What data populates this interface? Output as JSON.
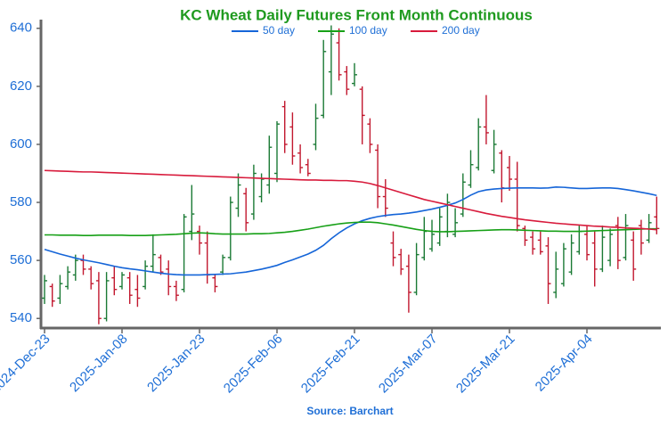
{
  "chart_data": {
    "type": "ohlc",
    "title": "KC Wheat Daily Futures Front Month Continuous",
    "source": "Source: Barchart",
    "categories": [
      "2024-Dec-23",
      null,
      null,
      null,
      null,
      null,
      null,
      null,
      null,
      null,
      "2025-Jan-08",
      null,
      null,
      null,
      null,
      null,
      null,
      null,
      null,
      null,
      "2025-Jan-23",
      null,
      null,
      null,
      null,
      null,
      null,
      null,
      null,
      null,
      "2025-Feb-06",
      null,
      null,
      null,
      null,
      null,
      null,
      null,
      null,
      null,
      "2025-Feb-21",
      null,
      null,
      null,
      null,
      null,
      null,
      null,
      null,
      null,
      "2025-Mar-07",
      null,
      null,
      null,
      null,
      null,
      null,
      null,
      null,
      null,
      "2025-Mar-21",
      null,
      null,
      null,
      null,
      null,
      null,
      null,
      null,
      null,
      "2025-Apr-04",
      null,
      null,
      null,
      null,
      null,
      null,
      null,
      null,
      null
    ],
    "ohlc": {
      "up_color": "#1b7a35",
      "down_color": "#c2182f",
      "open": [
        547,
        551,
        547,
        551,
        555,
        560,
        557,
        553,
        540,
        554,
        551,
        554,
        550,
        551,
        558,
        561,
        557,
        551,
        550,
        570,
        570,
        566,
        554,
        556,
        561,
        578,
        583,
        576,
        582,
        586,
        590,
        613,
        606,
        597,
        593,
        600,
        610,
        625,
        635,
        625,
        621,
        619,
        607,
        598,
        582,
        566,
        562,
        558,
        549,
        561,
        564,
        566,
        570,
        569,
        576,
        586,
        592,
        606,
        591,
        597,
        592,
        588,
        571,
        568,
        567,
        565,
        549,
        552,
        556,
        563,
        569,
        566,
        557,
        560,
        572,
        561,
        567,
        572,
        567,
        575
      ],
      "high": [
        555,
        552,
        555,
        558,
        562,
        562,
        558,
        556,
        556,
        558,
        556,
        556,
        555,
        560,
        569,
        562,
        560,
        553,
        576,
        586,
        572,
        570,
        555,
        562,
        582,
        590,
        585,
        593,
        590,
        603,
        608,
        615,
        611,
        600,
        595,
        614,
        636,
        641,
        640,
        627,
        628,
        620,
        609,
        600,
        588,
        570,
        564,
        562,
        566,
        575,
        574,
        578,
        583,
        578,
        590,
        598,
        609,
        617,
        605,
        598,
        596,
        594,
        572,
        570,
        570,
        568,
        563,
        566,
        569,
        572,
        572,
        570,
        572,
        571,
        575,
        576,
        570,
        574,
        576,
        582
      ],
      "low": [
        545,
        544,
        545,
        550,
        553,
        555,
        550,
        538,
        539,
        548,
        550,
        545,
        544,
        550,
        556,
        555,
        548,
        546,
        549,
        567,
        562,
        552,
        549,
        555,
        560,
        575,
        570,
        574,
        580,
        583,
        587,
        597,
        593,
        590,
        589,
        598,
        609,
        617,
        622,
        617,
        620,
        600,
        597,
        578,
        575,
        558,
        555,
        542,
        548,
        560,
        563,
        565,
        568,
        568,
        575,
        585,
        591,
        600,
        590,
        580,
        584,
        570,
        565,
        562,
        562,
        545,
        547,
        551,
        555,
        562,
        560,
        551,
        556,
        558,
        557,
        560,
        553,
        562,
        566,
        569
      ],
      "close": [
        553,
        546,
        552,
        556,
        560,
        557,
        552,
        540,
        553,
        550,
        555,
        548,
        547,
        558,
        562,
        556,
        551,
        548,
        575,
        576,
        566,
        555,
        551,
        561,
        580,
        586,
        573,
        590,
        588,
        599,
        607,
        600,
        596,
        592,
        590,
        609,
        632,
        638,
        624,
        619,
        624,
        610,
        600,
        582,
        578,
        561,
        557,
        549,
        562,
        570,
        569,
        575,
        580,
        573,
        587,
        593,
        606,
        604,
        600,
        585,
        588,
        572,
        567,
        564,
        563,
        552,
        557,
        564,
        566,
        570,
        562,
        557,
        568,
        569,
        560,
        572,
        557,
        566,
        573,
        571
      ]
    },
    "series": [
      {
        "name": "50 day",
        "color": "#1565d8",
        "values": [
          563.8,
          563,
          562.2,
          561.5,
          560.8,
          560.2,
          559.7,
          559.2,
          558.6,
          558,
          557.5,
          557.1,
          556.8,
          556.4,
          556,
          555.6,
          555.3,
          555.1,
          555,
          555,
          555,
          555.1,
          555.2,
          555.3,
          555.4,
          555.7,
          556,
          556.5,
          557,
          557.6,
          558.3,
          559.3,
          560.2,
          561.2,
          562.2,
          563.5,
          565.2,
          567.5,
          569.5,
          571.2,
          572.6,
          573.7,
          574.5,
          575.1,
          575.5,
          575.8,
          576,
          576.3,
          576.7,
          577.2,
          577.7,
          578.3,
          579,
          579.8,
          581,
          582.5,
          583.7,
          584.3,
          584.6,
          584.8,
          584.9,
          585,
          585,
          585,
          584.9,
          585,
          585.3,
          585.2,
          585,
          584.8,
          584.8,
          584.9,
          585,
          585,
          584.8,
          584.4,
          584,
          583.5,
          583,
          582.4
        ]
      },
      {
        "name": "100 day",
        "color": "#17a017",
        "values": [
          568.8,
          568.8,
          568.7,
          568.7,
          568.7,
          568.6,
          568.6,
          568.7,
          568.7,
          568.7,
          568.7,
          568.6,
          568.6,
          568.6,
          568.7,
          568.8,
          568.9,
          569,
          569.2,
          569.4,
          569.5,
          569.4,
          569.2,
          569.1,
          569.1,
          569.1,
          569.1,
          569.2,
          569.2,
          569.3,
          569.5,
          569.7,
          570,
          570.4,
          570.8,
          571.3,
          571.8,
          572.2,
          572.6,
          572.9,
          573.1,
          573.2,
          573.2,
          573,
          572.6,
          572.2,
          571.7,
          571.2,
          570.7,
          570.3,
          570,
          569.9,
          569.9,
          570,
          570.1,
          570.2,
          570.3,
          570.4,
          570.5,
          570.6,
          570.6,
          570.5,
          570.4,
          570.3,
          570.2,
          570.1,
          570.1,
          570,
          570,
          570,
          570.1,
          570.2,
          570.3,
          570.4,
          570.5,
          570.6,
          570.7,
          570.8,
          570.9,
          570.9
        ]
      },
      {
        "name": "200 day",
        "color": "#d81b3c",
        "values": [
          591,
          590.9,
          590.8,
          590.7,
          590.6,
          590.5,
          590.5,
          590.4,
          590.3,
          590.2,
          590.1,
          590,
          589.9,
          589.8,
          589.7,
          589.6,
          589.5,
          589.4,
          589.3,
          589.2,
          589.1,
          589,
          588.9,
          588.8,
          588.7,
          588.6,
          588.5,
          588.4,
          588.3,
          588.2,
          588.1,
          588,
          587.9,
          587.8,
          587.7,
          587.7,
          587.6,
          587.6,
          587.5,
          587.5,
          587.3,
          587,
          586.5,
          585.8,
          585,
          584.2,
          583.4,
          582.6,
          581.8,
          581,
          580.4,
          579.8,
          579.2,
          578.6,
          578,
          577.4,
          576.8,
          576.2,
          575.7,
          575.2,
          574.8,
          574.4,
          574,
          573.7,
          573.4,
          573.1,
          572.8,
          572.6,
          572.4,
          572.2,
          572,
          571.8,
          571.7,
          571.5,
          571.4,
          571.2,
          571.1,
          571,
          570.8,
          570.6
        ]
      }
    ],
    "ylim": [
      537,
      643
    ],
    "yticks": [
      540,
      560,
      580,
      600,
      620,
      640
    ],
    "grid": false
  }
}
